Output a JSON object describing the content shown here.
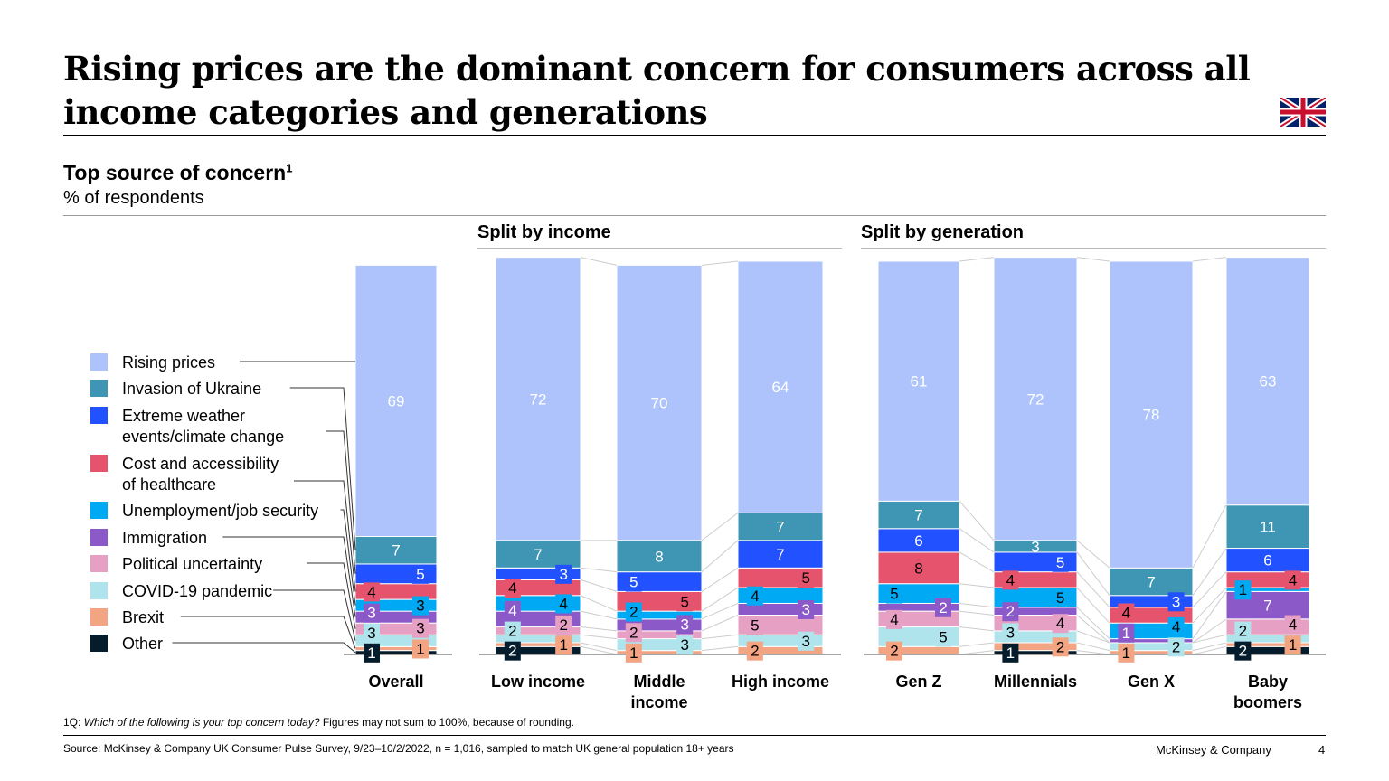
{
  "title": "Rising prices are the dominant concern for consumers across all income categories and generations",
  "subtitle": "Top source of concern",
  "subtitle_sup": "1",
  "unit": "% of respondents",
  "groups": {
    "income": "Split by income",
    "generation": "Split by generation"
  },
  "footnote_prefix": "1Q: ",
  "footnote_question": "Which of the following is your top concern today?",
  "footnote_rest": " Figures may not sum to 100%, because of rounding.",
  "source": "Source: McKinsey & Company UK Consumer Pulse Survey, 9/23–10/2/2022, n = 1,016, sampled to match UK general population 18+ years",
  "brand": "McKinsey & Company",
  "page": "4",
  "chart_data": {
    "type": "bar",
    "stacked": true,
    "categories": [
      "Overall",
      "Low income",
      "Middle income",
      "High income",
      "Gen Z",
      "Millennials",
      "Gen X",
      "Baby boomers"
    ],
    "series": [
      {
        "name": "Other",
        "color": "#051c2c",
        "values": [
          1,
          2,
          0,
          0,
          0,
          1,
          0,
          2
        ]
      },
      {
        "name": "Brexit",
        "color": "#f3a482",
        "values": [
          1,
          1,
          1,
          2,
          2,
          2,
          1,
          1
        ]
      },
      {
        "name": "COVID-19 pandemic",
        "color": "#afe4ed",
        "values": [
          3,
          2,
          3,
          3,
          5,
          3,
          2,
          2
        ]
      },
      {
        "name": "Political uncertainty",
        "color": "#e6a0c4",
        "values": [
          3,
          2,
          2,
          5,
          4,
          4,
          0,
          4
        ]
      },
      {
        "name": "Immigration",
        "color": "#8c5ac8",
        "values": [
          3,
          4,
          3,
          3,
          2,
          2,
          1,
          7
        ]
      },
      {
        "name": "Unemployment/job security",
        "color": "#00a9f4",
        "values": [
          3,
          4,
          2,
          4,
          5,
          5,
          4,
          1
        ]
      },
      {
        "name": "Cost and accessibility of healthcare",
        "color": "#e5546c",
        "values": [
          4,
          4,
          5,
          5,
          8,
          4,
          4,
          4
        ]
      },
      {
        "name": "Extreme weather events/climate change",
        "color": "#2251ff",
        "values": [
          5,
          3,
          5,
          7,
          6,
          5,
          3,
          6
        ]
      },
      {
        "name": "Invasion of Ukraine",
        "color": "#3f96b4",
        "values": [
          7,
          7,
          8,
          7,
          7,
          3,
          7,
          11
        ]
      },
      {
        "name": "Rising prices",
        "color": "#aec3fb",
        "values": [
          69,
          72,
          70,
          64,
          61,
          72,
          78,
          63
        ]
      }
    ],
    "ylim": [
      0,
      100
    ]
  }
}
